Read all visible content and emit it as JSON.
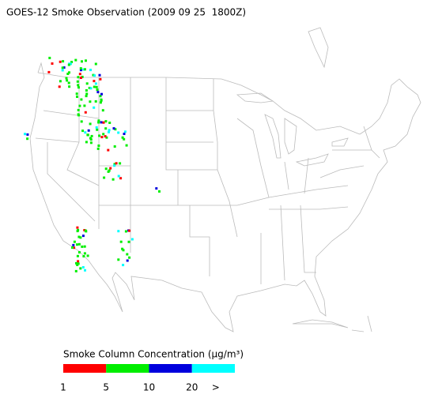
{
  "header": {
    "title": "GOES-12 Smoke Observation (2009 09 25  1800Z)"
  },
  "legend": {
    "title": "Smoke Column Concentration (μg/m³)",
    "colors": [
      "#ff0000",
      "#00ee00",
      "#0000dd",
      "#00ffff"
    ],
    "labels": [
      "1",
      "5",
      "10",
      "20",
      ">"
    ]
  }
}
